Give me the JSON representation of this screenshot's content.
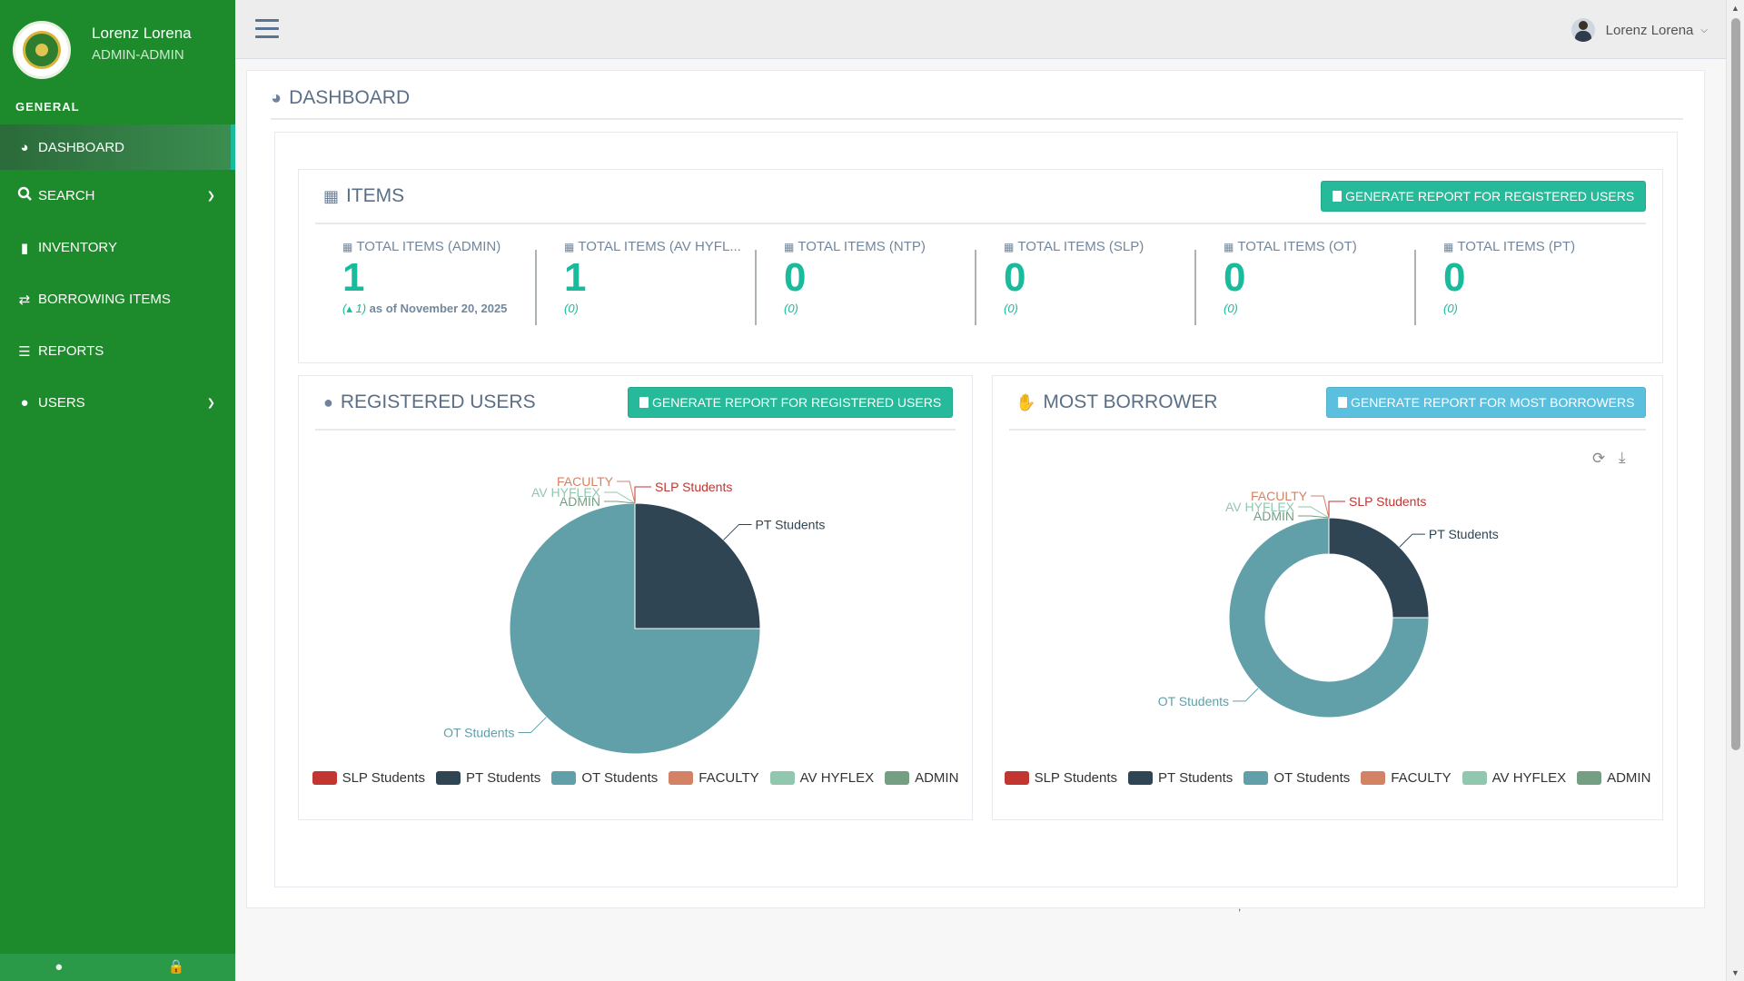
{
  "sidebar": {
    "user_name": "Lorenz Lorena",
    "user_role": "ADMIN-ADMIN",
    "section": "GENERAL",
    "items": [
      {
        "label": "DASHBOARD",
        "icon": "dashboard-icon"
      },
      {
        "label": "SEARCH",
        "icon": "search-icon"
      },
      {
        "label": "INVENTORY",
        "icon": "inventory-icon"
      },
      {
        "label": "BORROWING ITEMS",
        "icon": "exchange-icon"
      },
      {
        "label": "REPORTS",
        "icon": "chart-icon"
      },
      {
        "label": "USERS",
        "icon": "users-icon"
      }
    ]
  },
  "topbar": {
    "user_name": "Lorenz Lorena"
  },
  "page": {
    "title": "DASHBOARD"
  },
  "items_card": {
    "title": "ITEMS",
    "button": "GENERATE REPORT FOR REGISTERED USERS",
    "stats": [
      {
        "label": "TOTAL ITEMS (ADMIN)",
        "value": "1",
        "delta": "(▴ 1)",
        "as_of": "as of November 20, 2025"
      },
      {
        "label": "TOTAL ITEMS (AV HYFL...",
        "value": "1",
        "delta": "(0)"
      },
      {
        "label": "TOTAL ITEMS (NTP)",
        "value": "0",
        "delta": "(0)"
      },
      {
        "label": "TOTAL ITEMS (SLP)",
        "value": "0",
        "delta": "(0)"
      },
      {
        "label": "TOTAL ITEMS (OT)",
        "value": "0",
        "delta": "(0)"
      },
      {
        "label": "TOTAL ITEMS (PT)",
        "value": "0",
        "delta": "(0)"
      }
    ]
  },
  "users_card": {
    "title": "REGISTERED USERS",
    "button": "GENERATE REPORT FOR REGISTERED USERS"
  },
  "borrower_card": {
    "title": "MOST BORROWER",
    "button": "GENERATE REPORT FOR MOST BORROWERS"
  },
  "colors": {
    "SLP Students": "#c23531",
    "PT Students": "#2f4554",
    "OT Students": "#61a0a8",
    "FACULTY": "#d48265",
    "AV HYFLEX": "#91c7ae",
    "ADMIN": "#749f83"
  },
  "chart_data": [
    {
      "type": "pie",
      "title": "REGISTERED USERS",
      "categories": [
        "SLP Students",
        "PT Students",
        "OT Students",
        "FACULTY",
        "AV HYFLEX",
        "ADMIN"
      ],
      "values": [
        0,
        1,
        3,
        0,
        0,
        0
      ],
      "legend": "bottom"
    },
    {
      "type": "pie",
      "subtype": "donut",
      "title": "MOST BORROWER",
      "categories": [
        "SLP Students",
        "PT Students",
        "OT Students",
        "FACULTY",
        "AV HYFLEX",
        "ADMIN"
      ],
      "values": [
        0,
        1,
        3,
        0,
        0,
        0
      ],
      "legend": "bottom"
    }
  ]
}
